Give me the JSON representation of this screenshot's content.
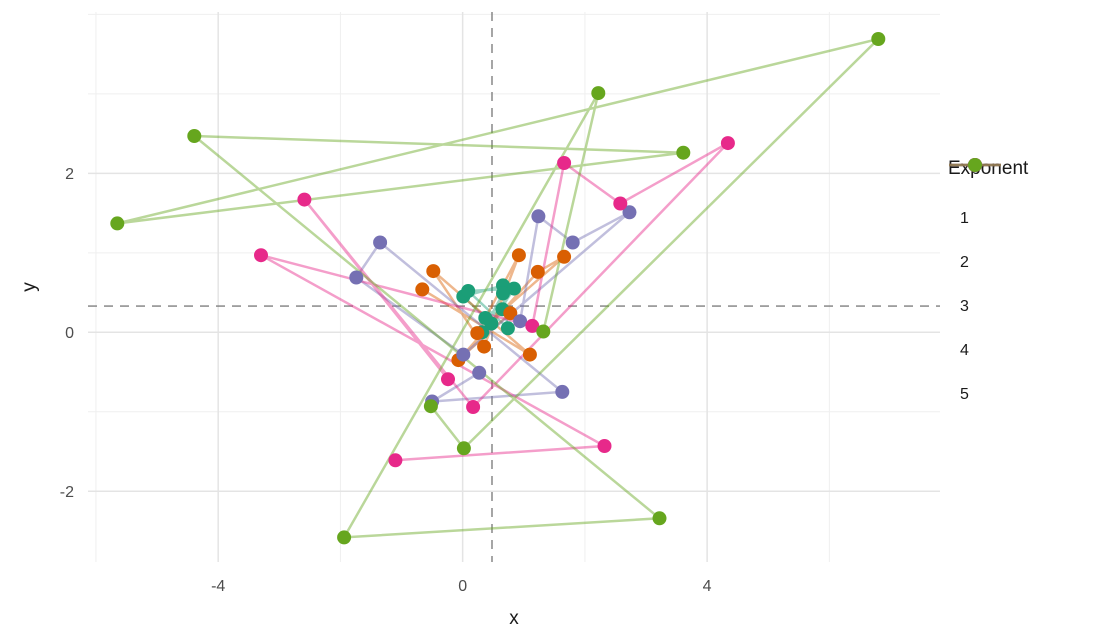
{
  "chart_data": {
    "type": "scatter",
    "subtype": "connected-scatter-path",
    "title": "",
    "xlabel": "x",
    "ylabel": "y",
    "legend_title": "Exponent",
    "legend_position": "right",
    "grid": "on",
    "xlim": [
      -6.13,
      7.81
    ],
    "ylim": [
      -2.89,
      4.03
    ],
    "x_major_ticks": [
      -4,
      0,
      4
    ],
    "x_minor_gridlines": [
      -6,
      -2,
      2,
      6
    ],
    "y_major_ticks": [
      2,
      0,
      -2
    ],
    "y_minor_gridlines": [
      4,
      3,
      1,
      -1
    ],
    "reference_lines": {
      "vline_x": 0.48,
      "hline_y": 0.33,
      "style": "dashed",
      "color": "#7f7f7f"
    },
    "series": [
      {
        "name": "1",
        "color": "#1B9E77",
        "points": [
          [
            0.66,
            0.59
          ],
          [
            0.01,
            0.45
          ],
          [
            0.47,
            0.11
          ],
          [
            0.84,
            0.55
          ],
          [
            0.09,
            0.52
          ],
          [
            0.74,
            0.05
          ],
          [
            0.66,
            0.49
          ],
          [
            0.32,
            0.0
          ],
          [
            0.65,
            0.29
          ],
          [
            0.37,
            0.18
          ]
        ]
      },
      {
        "name": "2",
        "color": "#D95F02",
        "points": [
          [
            -0.66,
            0.54
          ],
          [
            1.1,
            -0.28
          ],
          [
            -0.48,
            0.77
          ],
          [
            0.35,
            -0.18
          ],
          [
            0.92,
            0.97
          ],
          [
            0.24,
            -0.01
          ],
          [
            1.66,
            0.95
          ],
          [
            1.23,
            0.76
          ],
          [
            -0.07,
            -0.35
          ],
          [
            0.78,
            0.24
          ]
        ]
      },
      {
        "name": "3",
        "color": "#7570B3",
        "points": [
          [
            0.94,
            0.14
          ],
          [
            1.24,
            1.46
          ],
          [
            1.8,
            1.13
          ],
          [
            2.73,
            1.51
          ],
          [
            0.01,
            -0.28
          ],
          [
            -1.74,
            0.69
          ],
          [
            -1.35,
            1.13
          ],
          [
            1.63,
            -0.75
          ],
          [
            -0.5,
            -0.87
          ],
          [
            0.27,
            -0.51
          ]
        ]
      },
      {
        "name": "4",
        "color": "#E7298A",
        "points": [
          [
            -0.24,
            -0.59
          ],
          [
            -2.59,
            1.67
          ],
          [
            0.17,
            -0.94
          ],
          [
            4.34,
            2.38
          ],
          [
            2.58,
            1.62
          ],
          [
            1.66,
            2.13
          ],
          [
            1.14,
            0.08
          ],
          [
            -3.3,
            0.97
          ],
          [
            2.32,
            -1.43
          ],
          [
            -1.1,
            -1.61
          ]
        ]
      },
      {
        "name": "5",
        "color": "#66A61E",
        "points": [
          [
            1.32,
            0.01
          ],
          [
            2.22,
            3.01
          ],
          [
            -1.94,
            -2.58
          ],
          [
            3.22,
            -2.34
          ],
          [
            -4.39,
            2.47
          ],
          [
            3.61,
            2.26
          ],
          [
            -5.65,
            1.37
          ],
          [
            6.8,
            3.69
          ],
          [
            0.02,
            -1.46
          ],
          [
            -0.52,
            -0.93
          ]
        ]
      }
    ],
    "style": {
      "point_radius": 7,
      "line_width": 2.5,
      "line_opacity": 0.45,
      "grid_major_color": "#e4e4e4",
      "grid_minor_color": "#efefef",
      "axis_text_color": "#4d4d4d",
      "axis_title_color": "#1a1a1a"
    }
  }
}
